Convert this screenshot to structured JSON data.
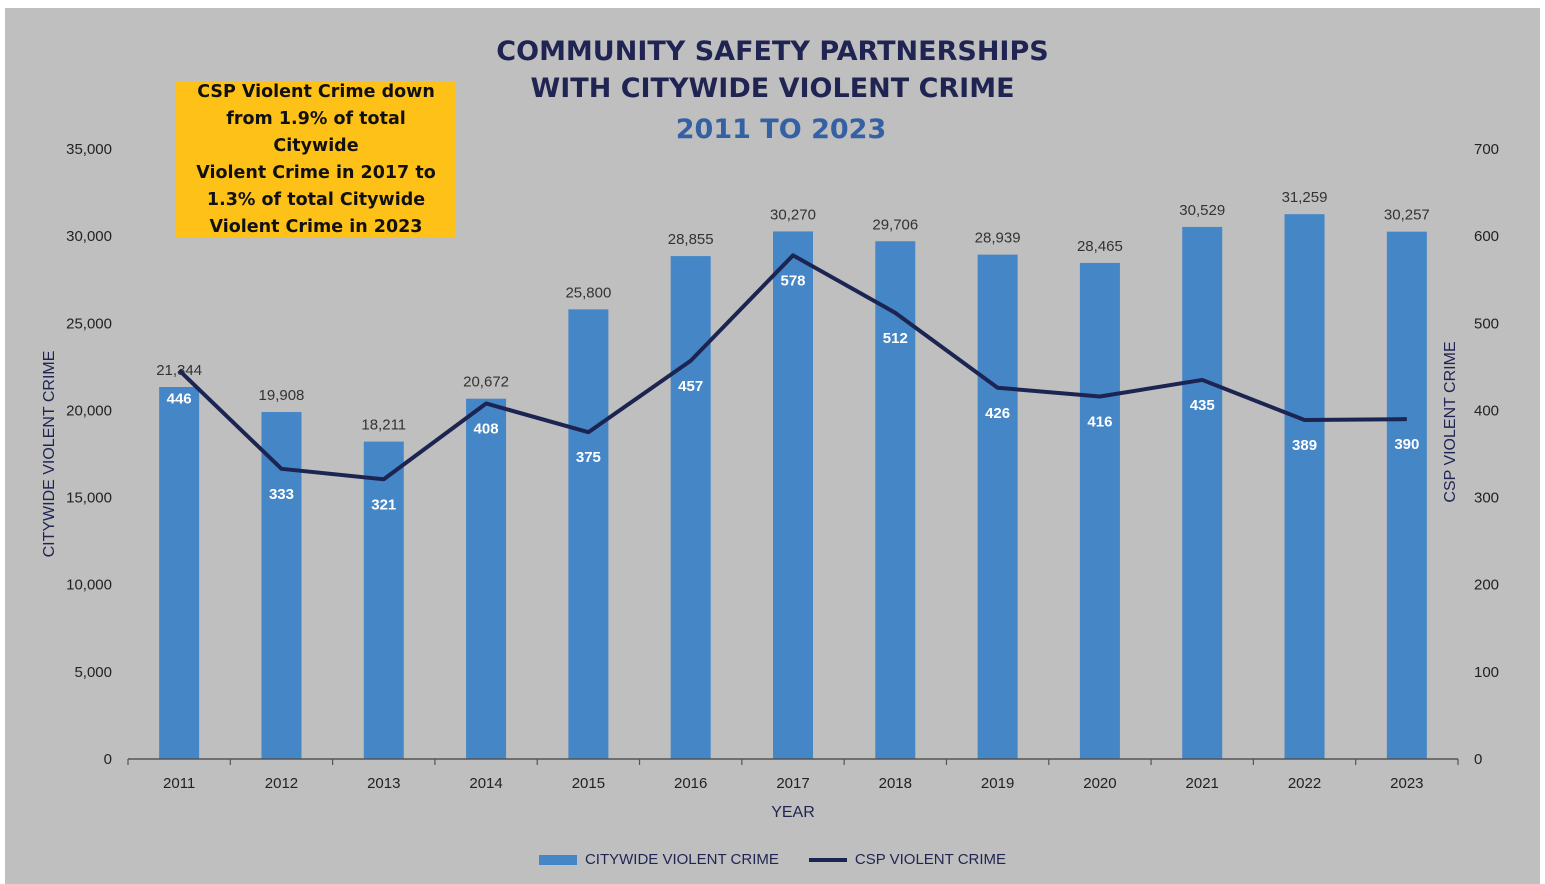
{
  "title_line1": "COMMUNITY SAFETY PARTNERSHIPS",
  "title_line2": "WITH CITYWIDE VIOLENT CRIME",
  "subtitle": "2011 TO 2023",
  "callout": "CSP Violent Crime down\nfrom 1.9% of total Citywide\nViolent Crime in 2017 to\n1.3% of total Citywide\nViolent Crime in 2023",
  "colors": {
    "background": "#bfbfbf",
    "bar": "#4586c7",
    "line": "#1c2452",
    "callout": "#fdc117",
    "title": "#1f2452",
    "subtitle": "#3461a3"
  },
  "legend": {
    "bar_label": "CITYWIDE VIOLENT CRIME",
    "line_label": "CSP VIOLENT CRIME"
  },
  "chart_data": {
    "type": "bar",
    "title": "COMMUNITY SAFETY PARTNERSHIPS WITH CITYWIDE VIOLENT CRIME",
    "subtitle": "2011 TO 2023",
    "xlabel": "YEAR",
    "ylabel": "CITYWIDE VIOLENT CRIME",
    "y2label": "CSP VIOLENT CRIME",
    "ylim": [
      0,
      35000
    ],
    "y2lim": [
      0,
      700
    ],
    "yticks": [
      "0",
      "5,000",
      "10,000",
      "15,000",
      "20,000",
      "25,000",
      "30,000",
      "35,000"
    ],
    "y2ticks": [
      "0",
      "100",
      "200",
      "300",
      "400",
      "500",
      "600",
      "700"
    ],
    "categories": [
      "2011",
      "2012",
      "2013",
      "2014",
      "2015",
      "2016",
      "2017",
      "2018",
      "2019",
      "2020",
      "2021",
      "2022",
      "2023"
    ],
    "legend_position": "bottom",
    "grid": false,
    "series": [
      {
        "name": "CITYWIDE VIOLENT CRIME",
        "type": "bar",
        "axis": "left",
        "values": [
          21344,
          19908,
          18211,
          20672,
          25800,
          28855,
          30270,
          29706,
          28939,
          28465,
          30529,
          31259,
          30257
        ],
        "labels": [
          "21,344",
          "19,908",
          "18,211",
          "20,672",
          "25,800",
          "28,855",
          "30,270",
          "29,706",
          "28,939",
          "28,465",
          "30,529",
          "31,259",
          "30,257"
        ]
      },
      {
        "name": "CSP VIOLENT CRIME",
        "type": "line",
        "axis": "right",
        "values": [
          446,
          333,
          321,
          408,
          375,
          457,
          578,
          512,
          426,
          416,
          435,
          389,
          390
        ],
        "labels": [
          "446",
          "333",
          "321",
          "408",
          "375",
          "457",
          "578",
          "512",
          "426",
          "416",
          "435",
          "389",
          "390"
        ]
      }
    ]
  }
}
